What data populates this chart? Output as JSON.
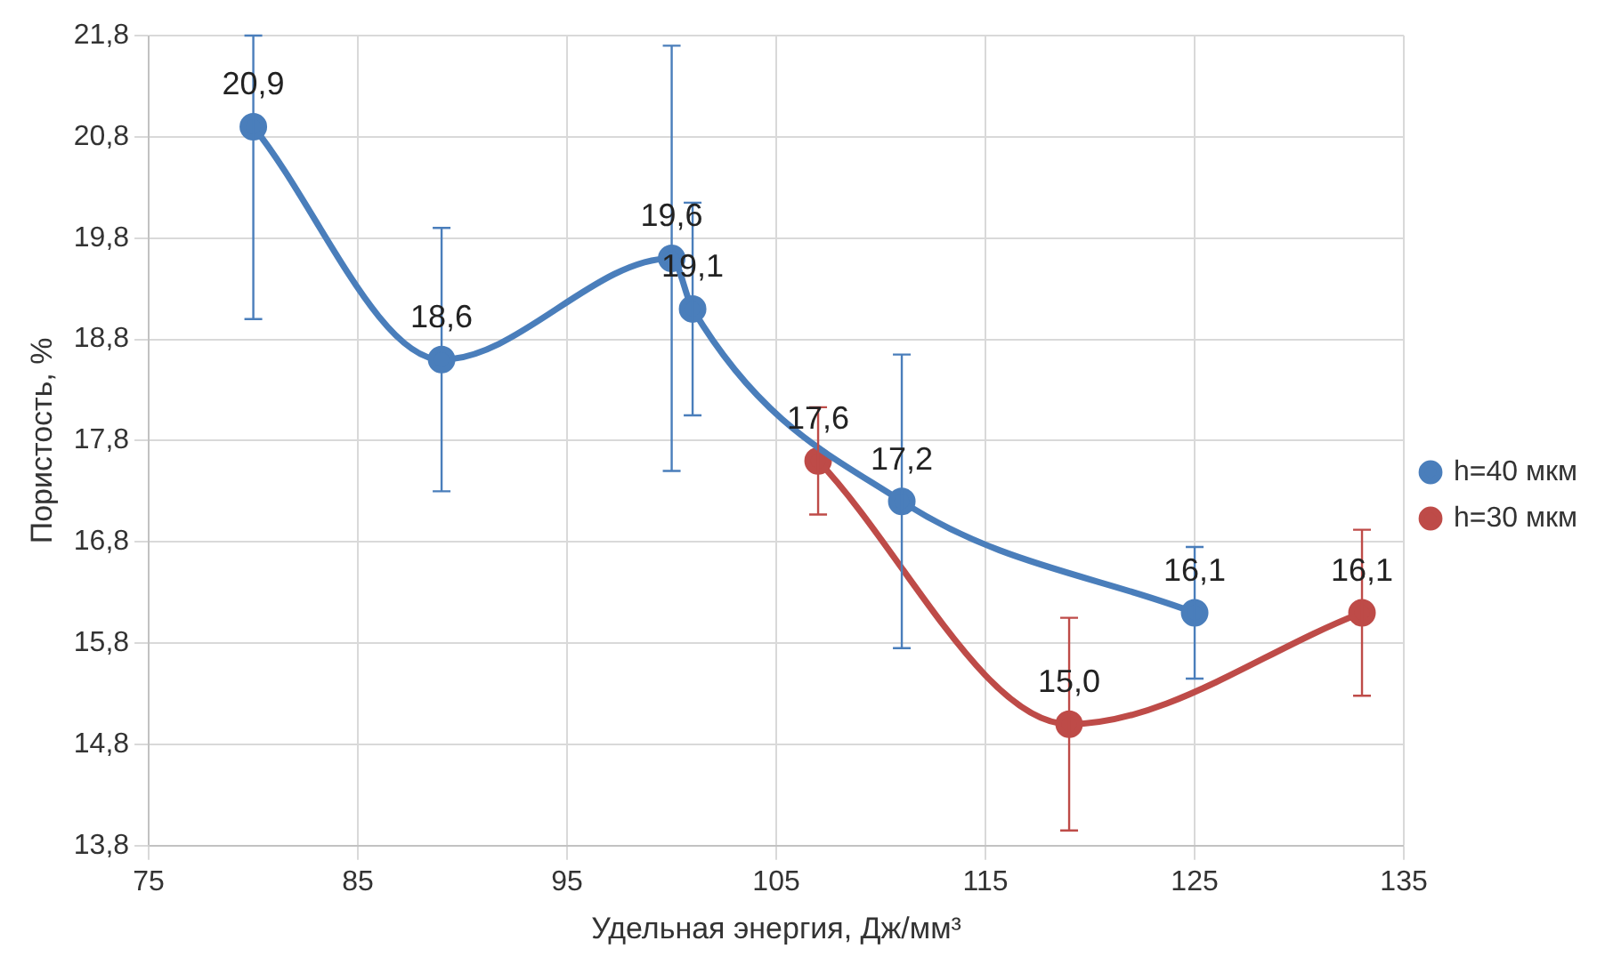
{
  "chart_data": {
    "type": "line",
    "xlabel": "Удельная энергия, Дж/мм³",
    "ylabel": "Пористость, %",
    "xlim": [
      75,
      135
    ],
    "xticks": [
      75,
      85,
      95,
      105,
      115,
      125,
      135
    ],
    "ylim": [
      13.8,
      21.8
    ],
    "yticks": [
      {
        "value": 13.8,
        "label": "13,8"
      },
      {
        "value": 14.8,
        "label": "14,8"
      },
      {
        "value": 15.8,
        "label": "15,8"
      },
      {
        "value": 16.8,
        "label": "16,8"
      },
      {
        "value": 17.8,
        "label": "17,8"
      },
      {
        "value": 18.8,
        "label": "18,8"
      },
      {
        "value": 19.8,
        "label": "19,8"
      },
      {
        "value": 20.8,
        "label": "20,8"
      },
      {
        "value": 21.8,
        "label": "21,8"
      }
    ],
    "grid": true,
    "legend": "right",
    "marker": "circle",
    "line_style": "solid",
    "series": [
      {
        "name": "h=40 мкм",
        "color": "#4a7ebb",
        "x": [
          80,
          89,
          100,
          101,
          111,
          125
        ],
        "values": [
          20.9,
          18.6,
          19.6,
          19.1,
          17.2,
          16.1
        ],
        "errors": [
          [
            19.0,
            21.8
          ],
          1.3,
          2.1,
          1.05,
          1.45,
          0.65
        ],
        "value_labels": [
          "20,9",
          "18,6",
          "19,6",
          "19,1",
          "17,2",
          "16,1"
        ]
      },
      {
        "name": "h=30 мкм",
        "color": "#be4b48",
        "x": [
          107,
          119,
          133
        ],
        "values": [
          17.6,
          15.0,
          16.1
        ],
        "errors": [
          0.53,
          1.05,
          0.82
        ],
        "value_labels": [
          "17,6",
          "15,0",
          "16,1"
        ]
      }
    ]
  }
}
